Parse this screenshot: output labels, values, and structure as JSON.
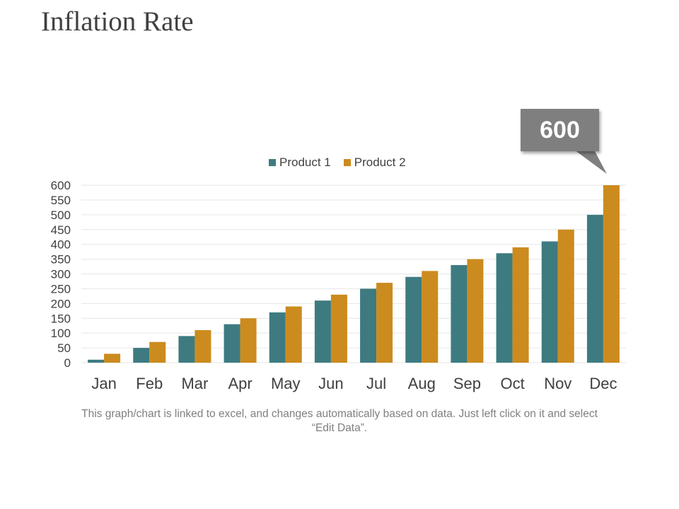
{
  "page": {
    "title": "Inflation Rate"
  },
  "callout": {
    "value": "600"
  },
  "footnote": "This graph/chart is linked to excel, and changes automatically based on data. Just left click on it and select “Edit Data”.",
  "colors": {
    "product1": "#3d7b80",
    "product2": "#cc8b1e",
    "callout_bg": "#7f7f7f",
    "gridline": "#e6e6e6"
  },
  "chart_data": {
    "type": "bar",
    "categories": [
      "Jan",
      "Feb",
      "Mar",
      "Apr",
      "May",
      "Jun",
      "Jul",
      "Aug",
      "Sep",
      "Oct",
      "Nov",
      "Dec"
    ],
    "series": [
      {
        "name": "Product 1",
        "values": [
          10,
          50,
          90,
          130,
          170,
          210,
          250,
          290,
          330,
          370,
          410,
          500
        ]
      },
      {
        "name": "Product 2",
        "values": [
          30,
          70,
          110,
          150,
          190,
          230,
          270,
          310,
          350,
          390,
          450,
          600
        ]
      }
    ],
    "ylim": [
      0,
      600
    ],
    "yticks": [
      0,
      50,
      100,
      150,
      200,
      250,
      300,
      350,
      400,
      450,
      500,
      550,
      600
    ],
    "grid": true,
    "legend_position": "top",
    "xlabel": "",
    "ylabel": ""
  }
}
